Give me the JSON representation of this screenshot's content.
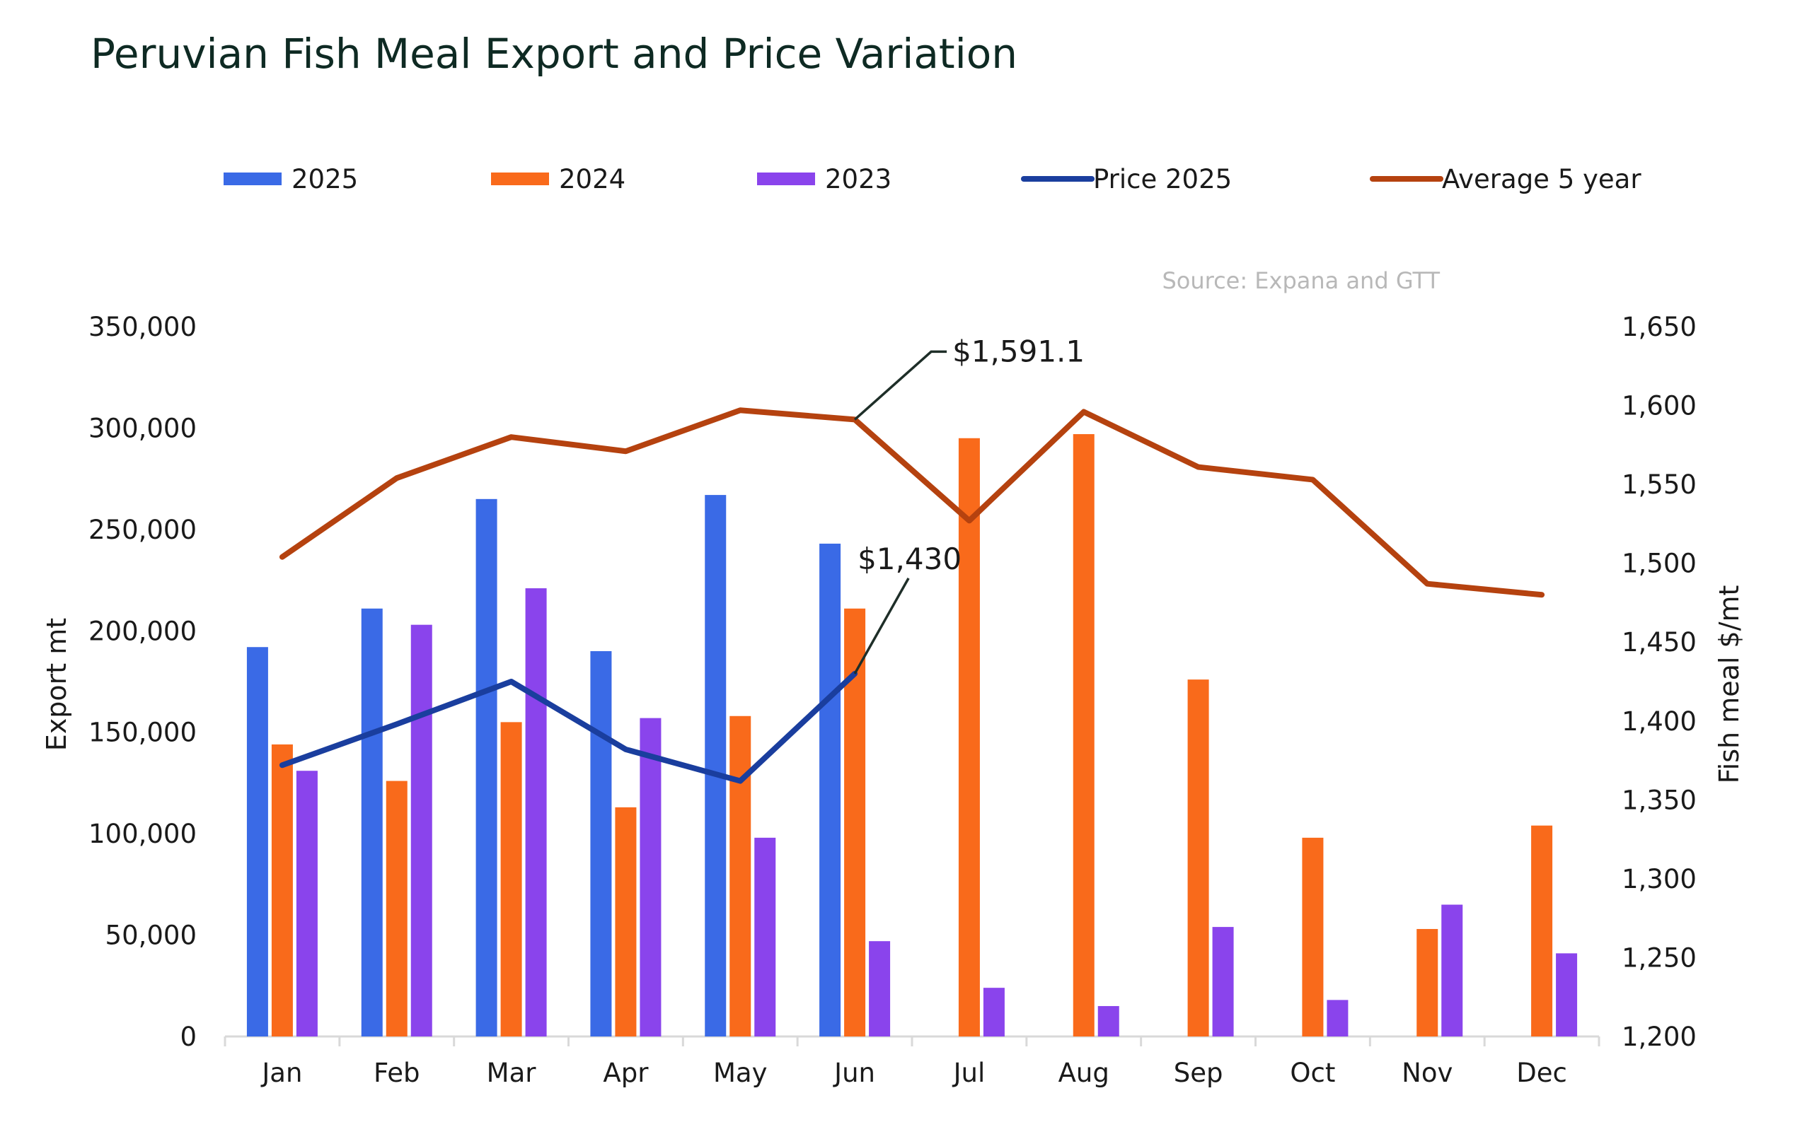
{
  "chart_data": {
    "type": "bar",
    "title": "Peruvian Fish Meal Export and Price Variation",
    "source": "Source: Expana and GTT",
    "categories": [
      "Jan",
      "Feb",
      "Mar",
      "Apr",
      "May",
      "Jun",
      "Jul",
      "Aug",
      "Sep",
      "Oct",
      "Nov",
      "Dec"
    ],
    "series": [
      {
        "name": "2025",
        "kind": "bar",
        "axis": "left",
        "color": "#3a6ae6",
        "values": [
          192000,
          211000,
          265000,
          190000,
          267000,
          243000,
          null,
          null,
          null,
          null,
          null,
          null
        ]
      },
      {
        "name": "2024",
        "kind": "bar",
        "axis": "left",
        "color": "#f96a1b",
        "values": [
          144000,
          126000,
          155000,
          113000,
          158000,
          211000,
          295000,
          297000,
          176000,
          98000,
          53000,
          104000
        ]
      },
      {
        "name": "2023",
        "kind": "bar",
        "axis": "left",
        "color": "#8a44ec",
        "values": [
          131000,
          203000,
          221000,
          157000,
          98000,
          47000,
          24000,
          15000,
          54000,
          18000,
          65000,
          41000
        ]
      },
      {
        "name": "Price 2025",
        "kind": "line",
        "axis": "right",
        "color": "#1a3e9e",
        "values": [
          1372,
          1398,
          1425,
          1382,
          1362,
          1430,
          null,
          null,
          null,
          null,
          null,
          null
        ]
      },
      {
        "name": "Average 5 year",
        "kind": "line",
        "axis": "right",
        "color": "#b5420f",
        "values": [
          1504,
          1554,
          1580,
          1571,
          1597,
          1591.1,
          1527,
          1596,
          1561,
          1553,
          1487,
          1480
        ]
      }
    ],
    "y_left": {
      "label": "Export  mt",
      "min": 0,
      "max": 350000,
      "ticks": [
        "0",
        "50,000",
        "100,000",
        "150,000",
        "200,000",
        "250,000",
        "300,000",
        "350,000"
      ]
    },
    "y_right": {
      "label": "Fish meal  $/mt",
      "min": 1200,
      "max": 1650,
      "ticks": [
        "1,200",
        "1,250",
        "1,300",
        "1,350",
        "1,400",
        "1,450",
        "1,500",
        "1,550",
        "1,600",
        "1,650"
      ]
    },
    "annotations": [
      {
        "text": "$1,591.1",
        "series": "Average 5 year",
        "index": 5
      },
      {
        "text": "$1,430",
        "series": "Price 2025",
        "index": 5
      }
    ],
    "legend_position": "top"
  }
}
